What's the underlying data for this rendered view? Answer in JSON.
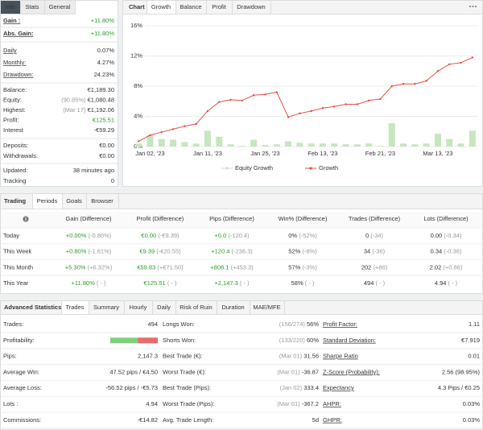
{
  "info_panel": {
    "tabs": [
      "Info",
      "Stats",
      "General"
    ],
    "active_tab": 0,
    "groups": [
      [
        {
          "label": "Gain :",
          "value": "+11.80%",
          "color": "#2e9a2e"
        },
        {
          "label": "Abs. Gain:",
          "value": "+11.80%",
          "color": "#2e9a2e"
        }
      ],
      [
        {
          "label": "Daily",
          "value": "0.07%"
        },
        {
          "label": "Monthly:",
          "value": "4.27%"
        },
        {
          "label": "Drawdown:",
          "value": "24.23%"
        }
      ],
      [
        {
          "label": "Balance:",
          "value": "€1,189.30"
        },
        {
          "label": "Equity:",
          "note": "(90.85%)",
          "value": "€1,080.48"
        },
        {
          "label": "Highest:",
          "note": "(Mar 17)",
          "value": "€1,192.06"
        },
        {
          "label": "Profit:",
          "value": "€125.51",
          "color": "#2e9a2e"
        },
        {
          "label": "Interest",
          "value": "-€59.29"
        }
      ],
      [
        {
          "label": "Deposits:",
          "value": "€0.00"
        },
        {
          "label": "Withdrawals:",
          "value": "€0.00"
        }
      ],
      [
        {
          "label": "Updated:",
          "value": "38 minutes ago"
        },
        {
          "label": "Tracking",
          "value": "0"
        }
      ]
    ]
  },
  "chart_panel": {
    "label": "Chart",
    "tabs": [
      "Growth",
      "Balance",
      "Profit",
      "Drawdown"
    ],
    "active_tab": 0
  },
  "chart_data": {
    "type": "line",
    "categories": [
      null,
      "Jan 02, '23",
      null,
      null,
      null,
      null,
      "Jan 11, '23",
      null,
      null,
      null,
      null,
      "Jan 25, '23",
      null,
      null,
      null,
      null,
      "Feb 13, '23",
      null,
      null,
      null,
      null,
      "Feb 21, '23",
      null,
      null,
      null,
      null,
      "Mar 13, '23",
      null,
      null,
      null
    ],
    "series": [
      {
        "name": "Equity Growth",
        "color": "#c8c8c8",
        "visible": false,
        "values": [
          null,
          null,
          null,
          null,
          null,
          null,
          null,
          null,
          null,
          null,
          null,
          null,
          null,
          null,
          null,
          null,
          null,
          null,
          null,
          null,
          null,
          null,
          null,
          null,
          null,
          null,
          null,
          null,
          null,
          null
        ]
      },
      {
        "name": "Growth",
        "color": "#e0504a",
        "visible": true,
        "values": [
          0.7,
          1.5,
          1.9,
          2.3,
          2.7,
          3.0,
          4.7,
          5.9,
          6.2,
          6.1,
          6.8,
          6.9,
          7.2,
          3.9,
          4.4,
          4.7,
          5.1,
          5.3,
          5.6,
          5.6,
          6.1,
          6.3,
          8.0,
          8.3,
          8.3,
          8.7,
          10.0,
          10.9,
          11.1,
          11.8
        ]
      }
    ],
    "bars": {
      "color": "#c6e6bf",
      "values": [
        0.4,
        1.5,
        1.0,
        0.9,
        0.6,
        0.4,
        2.1,
        1.3,
        0.3,
        0.1,
        0.9,
        0.2,
        0.3,
        0.7,
        0.5,
        0.4,
        0.4,
        0.4,
        0.3,
        0.3,
        0.4,
        0.1,
        3.1,
        0.4,
        0.3,
        0.4,
        1.7,
        1.0,
        0.4,
        2.1
      ]
    },
    "ylim": [
      0,
      16
    ],
    "yticks": [
      {
        "value": 0,
        "label": "0%"
      },
      {
        "value": 4,
        "label": "4%"
      },
      {
        "value": 8,
        "label": "8%"
      },
      {
        "value": 12,
        "label": "12%"
      },
      {
        "value": 16,
        "label": "16%"
      }
    ],
    "grid": true
  },
  "trading_panel": {
    "label": "Trading",
    "tabs": [
      "Periods",
      "Goals",
      "Browser"
    ],
    "active_tab": 0,
    "columns": [
      {
        "title": "Gain (Difference)",
        "color": "#2e9a2e"
      },
      {
        "title": "Profit (Difference)",
        "color": "#2e9a2e"
      },
      {
        "title": "Pips (Difference)",
        "color": "#2e9a2e"
      },
      {
        "title": "Win% (Difference)"
      },
      {
        "title": "Trades (Difference)"
      },
      {
        "title": "Lots (Difference)"
      }
    ],
    "rows": [
      {
        "period": "Today",
        "cells": [
          {
            "value": "+0.00%",
            "diff": "(-0.80%)"
          },
          {
            "value": "€0.00",
            "diff": "(-€9.39)"
          },
          {
            "value": "+0.0",
            "diff": "(-120.4)"
          },
          {
            "value": "0%",
            "diff": "(-52%)"
          },
          {
            "value": "0",
            "diff": "(-34)"
          },
          {
            "value": "0.00",
            "diff": "(-0.34)"
          }
        ]
      },
      {
        "period": "This Week",
        "cells": [
          {
            "value": "+0.80%",
            "diff": "(-1.61%)"
          },
          {
            "value": "€9.39",
            "diff": "(-€20.55)"
          },
          {
            "value": "+120.4",
            "diff": "(-236.3)"
          },
          {
            "value": "52%",
            "diff": "(-8%)"
          },
          {
            "value": "34",
            "diff": "(-36)"
          },
          {
            "value": "0.34",
            "diff": "(-0.36)"
          }
        ]
      },
      {
        "period": "This Month",
        "cells": [
          {
            "value": "+5.30%",
            "diff": "(+6.32%)"
          },
          {
            "value": "€59.83",
            "diff": "(+€71.50)"
          },
          {
            "value": "+808.1",
            "diff": "(+453.3)"
          },
          {
            "value": "57%",
            "diff": "(-3%)"
          },
          {
            "value": "202",
            "diff": "(+86)"
          },
          {
            "value": "2.02",
            "diff": "(+0.86)"
          }
        ]
      },
      {
        "period": "This Year",
        "cells": [
          {
            "value": "+11.80%",
            "diff": "( - )"
          },
          {
            "value": "€125.51",
            "diff": "( - )"
          },
          {
            "value": "+2,147.3",
            "diff": "( - )"
          },
          {
            "value": "58%",
            "diff": "( - )"
          },
          {
            "value": "494",
            "diff": "( - )"
          },
          {
            "value": "4.94",
            "diff": "( - )"
          }
        ]
      }
    ]
  },
  "stats_panel": {
    "label": "Advanced Statistics",
    "tabs": [
      "Trades",
      "Summary",
      "Hourly",
      "Daily",
      "Risk of Ruin",
      "Duration",
      "MAE/MFE"
    ],
    "active_tab": 0,
    "columns": [
      [
        {
          "label": "Trades:",
          "value": "494"
        },
        {
          "label": "Profitability:",
          "bar": [
            58,
            42
          ]
        },
        {
          "label": "Pips:",
          "value": "2,147.3"
        },
        {
          "label": "Average Win:",
          "value": "47.52 pips / €4.50"
        },
        {
          "label": "Average Loss:",
          "value": "-56.52 pips / -€5.73"
        },
        {
          "label": "Lots :",
          "value": "4.94"
        },
        {
          "label": "Commissions:",
          "value": "-€14.82"
        }
      ],
      [
        {
          "label": "Longs Won:",
          "note": "(156/274)",
          "value": "56%"
        },
        {
          "label": "Shorts Won:",
          "note": "(133/220)",
          "value": "60%"
        },
        {
          "label": "Best Trade (€):",
          "note": "(Mar 01)",
          "value": "31.56"
        },
        {
          "label": "Worst Trade (€):",
          "note": "(Mar 01)",
          "value": "-36.87"
        },
        {
          "label": "Best Trade (Pips):",
          "note": "(Jan 02)",
          "value": "333.4"
        },
        {
          "label": "Worst Trade (Pips):",
          "note": "(Mar 01)",
          "value": "-367.2"
        },
        {
          "label": "Avg. Trade Length:",
          "value": "5d"
        }
      ],
      [
        {
          "label": "Profit Factor:",
          "value": "1.11"
        },
        {
          "label": "Standard Deviation:",
          "value": "€7.919"
        },
        {
          "label": "Sharpe Ratio",
          "value": "0.01"
        },
        {
          "label": "Z-Score (Probability):",
          "value": "2.56 (98.95%)"
        },
        {
          "label": "Expectancy",
          "value": "4.3 Pips / €0.25"
        },
        {
          "label": "AHPR:",
          "value": "0.03%"
        },
        {
          "label": "GHPR:",
          "value": "0.03%"
        }
      ]
    ]
  }
}
